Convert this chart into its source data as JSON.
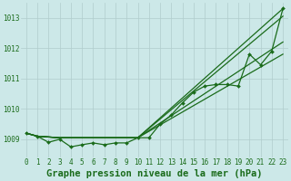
{
  "title": "Graphe pression niveau de la mer (hPa)",
  "bg_color": "#cce8e8",
  "grid_color": "#b0cccc",
  "line_color": "#1a6b1a",
  "x_labels": [
    "0",
    "1",
    "2",
    "3",
    "4",
    "5",
    "6",
    "7",
    "8",
    "9",
    "10",
    "11",
    "12",
    "13",
    "14",
    "15",
    "16",
    "17",
    "18",
    "19",
    "20",
    "21",
    "22",
    "23"
  ],
  "ylim": [
    1008.4,
    1013.5
  ],
  "yticks": [
    1009,
    1010,
    1011,
    1012,
    1013
  ],
  "series_markers": [
    1009.2,
    1009.1,
    1008.9,
    1009.0,
    1008.75,
    1008.82,
    1008.88,
    1008.82,
    1008.88,
    1008.88,
    1009.05,
    1009.05,
    1009.5,
    1009.8,
    1010.2,
    1010.55,
    1010.75,
    1010.8,
    1010.8,
    1010.75,
    1011.8,
    1011.45,
    1011.9,
    1013.3
  ],
  "series_straight": [
    [
      1009.2,
      1009.1,
      1009.05,
      1009.05,
      1013.3
    ],
    [
      1009.2,
      1009.1,
      1009.05,
      1009.05,
      1013.05
    ],
    [
      1009.2,
      1009.1,
      1009.05,
      1009.05,
      1012.2
    ],
    [
      1009.2,
      1009.1,
      1009.05,
      1009.05,
      1011.8
    ]
  ],
  "straight_x": [
    [
      0,
      1,
      3,
      10,
      23
    ],
    [
      0,
      1,
      3,
      10,
      23
    ],
    [
      0,
      1,
      3,
      10,
      23
    ],
    [
      0,
      1,
      3,
      10,
      23
    ]
  ],
  "marker": "D",
  "markersize": 2.0,
  "linewidth": 0.9,
  "title_fontsize": 7.5,
  "tick_fontsize": 5.5
}
